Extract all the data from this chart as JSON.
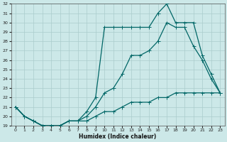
{
  "xlabel": "Humidex (Indice chaleur)",
  "ylabel": "",
  "bg_color": "#cce8e8",
  "grid_color": "#aacccc",
  "line_color": "#006666",
  "xlim": [
    -0.5,
    23.5
  ],
  "ylim": [
    19,
    32
  ],
  "yticks": [
    19,
    20,
    21,
    22,
    23,
    24,
    25,
    26,
    27,
    28,
    29,
    30,
    31,
    32
  ],
  "xticks": [
    0,
    1,
    2,
    3,
    4,
    5,
    6,
    7,
    8,
    9,
    10,
    11,
    12,
    13,
    14,
    15,
    16,
    17,
    18,
    19,
    20,
    21,
    22,
    23
  ],
  "line1_x": [
    0,
    1,
    2,
    3,
    4,
    5,
    6,
    7,
    8,
    9,
    10,
    11,
    12,
    13,
    14,
    15,
    16,
    17,
    18,
    19,
    20,
    21,
    22,
    23
  ],
  "line1_y": [
    21.0,
    20.0,
    19.5,
    19.0,
    19.0,
    19.0,
    19.5,
    19.5,
    19.5,
    20.0,
    20.5,
    20.5,
    21.0,
    21.5,
    21.5,
    21.5,
    22.0,
    22.0,
    22.5,
    22.5,
    22.5,
    22.5,
    22.5,
    22.5
  ],
  "line2_x": [
    0,
    1,
    2,
    3,
    4,
    5,
    6,
    7,
    8,
    9,
    10,
    11,
    12,
    13,
    14,
    15,
    16,
    17,
    18,
    19,
    20,
    21,
    22,
    23
  ],
  "line2_y": [
    21.0,
    20.0,
    19.5,
    19.0,
    19.0,
    19.0,
    19.5,
    19.5,
    20.0,
    21.0,
    22.5,
    23.0,
    24.5,
    26.5,
    26.5,
    27.0,
    28.0,
    30.0,
    29.5,
    29.5,
    27.5,
    26.0,
    24.0,
    22.5
  ],
  "line3_x": [
    0,
    1,
    2,
    3,
    4,
    5,
    6,
    7,
    8,
    9,
    10,
    11,
    12,
    13,
    14,
    15,
    16,
    17,
    18,
    19,
    20,
    21,
    22,
    23
  ],
  "line3_y": [
    21.0,
    20.0,
    19.5,
    19.0,
    19.0,
    19.0,
    19.5,
    19.5,
    20.5,
    22.0,
    29.5,
    29.5,
    29.5,
    29.5,
    29.5,
    29.5,
    31.0,
    32.0,
    30.0,
    30.0,
    30.0,
    26.5,
    24.5,
    22.5
  ]
}
